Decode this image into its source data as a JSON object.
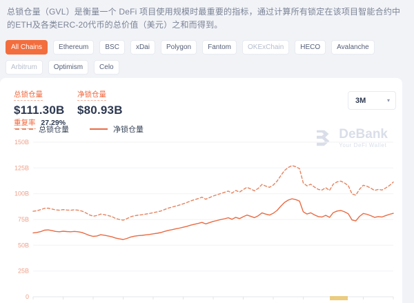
{
  "description": "总锁仓量（GVL）是衡量一个 DeFi 项目使用规模时最重要的指标，通过计算所有锁定在该项目智能合约中的ETH及各类ERC-20代币的总价值（美元）之和而得到。",
  "tabs": {
    "items": [
      {
        "label": "All Chains",
        "state": "active"
      },
      {
        "label": "Ethereum",
        "state": "normal"
      },
      {
        "label": "BSC",
        "state": "normal"
      },
      {
        "label": "xDai",
        "state": "normal"
      },
      {
        "label": "Polygon",
        "state": "normal"
      },
      {
        "label": "Fantom",
        "state": "normal"
      },
      {
        "label": "OKExChain",
        "state": "muted"
      },
      {
        "label": "HECO",
        "state": "normal"
      },
      {
        "label": "Avalanche",
        "state": "normal"
      },
      {
        "label": "Arbitrum",
        "state": "muted"
      },
      {
        "label": "Optimism",
        "state": "normal"
      },
      {
        "label": "Celo",
        "state": "normal"
      }
    ]
  },
  "stats": {
    "tvl_label": "总锁仓量",
    "tvl_value": "$111.30B",
    "net_label": "净锁仓量",
    "net_value": "$80.93B",
    "overlap_label": "重复率",
    "overlap_value": "27.29%"
  },
  "range_selector": {
    "value": "3M",
    "caret": "▾"
  },
  "legend": [
    {
      "label": "总锁仓量",
      "style": "dashed"
    },
    {
      "label": "净锁仓量",
      "style": "solid"
    }
  ],
  "watermark": {
    "name": "DeBank",
    "tagline": "Your DeFi Wallet"
  },
  "colors": {
    "page_bg": "#f1f3f7",
    "accent": "#f2693f",
    "tab_active_bg": "#f26e3e",
    "tab_text": "#535d76",
    "tab_muted_text": "#b6bdcc",
    "border": "#e7eaf0",
    "text_desc": "#7c8396",
    "text_dark": "#2c3850",
    "line_total": "#e5835f",
    "line_net": "#e96a42",
    "axis_label": "#efa18b",
    "gridline": "#f1f2f5",
    "axis_line": "#e0e4ea",
    "watermark": "#d9dee8",
    "marker_yellow": "#e9c468"
  },
  "chart_data": {
    "type": "line",
    "title": "",
    "xlabel": "",
    "ylabel": "",
    "x_range": "3 months, daily points",
    "ylim": [
      0,
      150
    ],
    "unit": "billion USD",
    "grid": true,
    "legend_position": "top-left",
    "yticks": [
      {
        "value": 150,
        "label": "150B"
      },
      {
        "value": 125,
        "label": "125B"
      },
      {
        "value": 100,
        "label": "100B"
      },
      {
        "value": 75,
        "label": "75B"
      },
      {
        "value": 50,
        "label": "50B"
      },
      {
        "value": 25,
        "label": "25B"
      },
      {
        "value": 0,
        "label": "0"
      }
    ],
    "series": [
      {
        "name": "总锁仓量",
        "style": "dashed",
        "values": [
          83,
          83.5,
          84.5,
          85.8,
          86,
          85.2,
          84.3,
          84,
          84.6,
          84.2,
          84,
          84.4,
          84,
          83.2,
          81.5,
          79.5,
          78.2,
          78.8,
          80.2,
          79.6,
          78.8,
          77.8,
          76,
          75,
          74.3,
          75.8,
          77.6,
          78.6,
          79.2,
          79.6,
          80.2,
          80.8,
          81.6,
          82.3,
          83.2,
          84.6,
          86,
          87,
          88,
          89,
          90.2,
          91.5,
          93,
          94.2,
          95.3,
          96.6,
          94.6,
          96.2,
          97.8,
          99,
          100.2,
          101.3,
          102.6,
          100.6,
          103.2,
          101.6,
          104,
          106.2,
          104.6,
          102.8,
          105.2,
          109,
          107.4,
          106.2,
          108.4,
          112,
          117.5,
          122.5,
          125.5,
          127.3,
          126.2,
          124.3,
          110.5,
          107.6,
          109.2,
          106.4,
          104.2,
          103.6,
          105.8,
          103.2,
          109.3,
          111.4,
          112.2,
          110.4,
          107.8,
          99.8,
          98.6,
          104.4,
          108.2,
          107.2,
          105.4,
          103.2,
          104.2,
          103.6,
          105.6,
          108,
          111.3
        ]
      },
      {
        "name": "净锁仓量",
        "style": "solid",
        "values": [
          62,
          62.4,
          63.2,
          64.6,
          64.9,
          64.2,
          63.4,
          63.1,
          63.6,
          63.3,
          63.1,
          63.4,
          63.1,
          62.4,
          61,
          59.5,
          58.6,
          59,
          60.2,
          59.7,
          59,
          58.2,
          57,
          56.2,
          55.6,
          56.6,
          58,
          58.8,
          59.3,
          59.6,
          60.1,
          60.5,
          61.1,
          61.6,
          62.3,
          63.4,
          64.4,
          65.1,
          65.9,
          66.6,
          67.5,
          68.4,
          69.5,
          70.4,
          71.2,
          72.2,
          70.7,
          71.9,
          73.1,
          74,
          74.9,
          75.7,
          76.7,
          75.2,
          77.1,
          75.9,
          77.7,
          79.3,
          78.1,
          76.8,
          78.6,
          81.4,
          80.2,
          79.3,
          81,
          83.7,
          87.8,
          91.5,
          93.8,
          95.1,
          94.3,
          92.8,
          82.5,
          80.3,
          81.5,
          79.4,
          77.8,
          77.4,
          79,
          77.1,
          81.6,
          83.2,
          83.8,
          82.4,
          80.5,
          74.5,
          73.6,
          78,
          80.8,
          80,
          78.7,
          77.1,
          77.8,
          77.4,
          78.8,
          80,
          80.93
        ]
      }
    ]
  }
}
